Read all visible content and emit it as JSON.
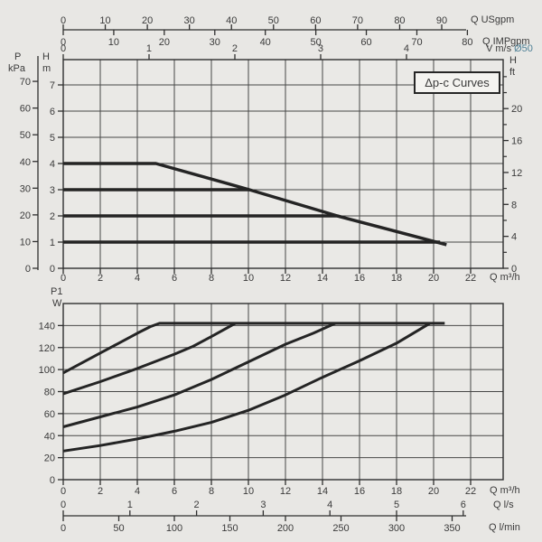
{
  "colors": {
    "background": "#e8e7e4",
    "plot_background": "#eae9e6",
    "grid": "#474747",
    "frame": "#2f2f2f",
    "curve": "#242424",
    "text": "#3a3a3a",
    "pipe_accent": "#4d7f95",
    "box_background": "#f4f3f0",
    "box_border": "#262626"
  },
  "mode_box_label": "Δp-c Curves",
  "chart_data": [
    {
      "type": "line",
      "title": "Δp-c Curves",
      "xlabel": "Q m³/h",
      "xlim": [
        0,
        23.8
      ],
      "x_ticks": [
        0,
        2,
        4,
        6,
        8,
        10,
        12,
        14,
        16,
        18,
        20,
        22
      ],
      "left_axis_kpa": {
        "line1": "P",
        "line2": "kPa",
        "ticks": [
          0,
          10,
          20,
          30,
          40,
          50,
          60,
          70
        ],
        "kpa_per_m": 9.81
      },
      "left_axis_m": {
        "line1": "H",
        "line2": "m",
        "ticks": [
          0,
          1,
          2,
          3,
          4,
          5,
          6,
          7
        ],
        "ylim": [
          0,
          8
        ]
      },
      "right_axis_ft": {
        "line1": "H",
        "line2": "ft",
        "major_ticks": [
          0,
          4,
          8,
          12,
          16,
          20
        ],
        "minor_ticks": [
          2,
          6,
          10,
          14,
          18,
          22,
          24
        ],
        "ft_per_m": 3.2808
      },
      "top_axis_usgpm": {
        "label": "Q USgpm",
        "ticks": [
          0,
          10,
          20,
          30,
          40,
          50,
          60,
          70,
          80,
          90
        ],
        "m3h_per_unit": 0.2271
      },
      "top_axis_impgpm": {
        "label": "Q IMPgpm",
        "ticks": [
          0,
          10,
          20,
          30,
          40,
          50,
          60,
          70,
          80
        ],
        "m3h_per_unit": 0.2728
      },
      "top_axis_velocity": {
        "label": "V m/s",
        "pipe": "Ø50",
        "ticks": [
          0,
          1,
          2,
          3,
          4
        ],
        "m3h_per_unit": 4.634
      },
      "series": [
        {
          "name": "constant-pressure-1m",
          "points": [
            [
              0,
              1
            ],
            [
              20.35,
              1
            ]
          ]
        },
        {
          "name": "constant-pressure-2m",
          "points": [
            [
              0,
              2
            ],
            [
              14.8,
              2
            ]
          ]
        },
        {
          "name": "constant-pressure-3m",
          "points": [
            [
              0,
              3
            ],
            [
              10.05,
              3
            ]
          ]
        },
        {
          "name": "constant-pressure-4m-max-curve",
          "points": [
            [
              0,
              4
            ],
            [
              5,
              4
            ],
            [
              10.05,
              3
            ],
            [
              14.8,
              2
            ],
            [
              20.7,
              0.9
            ]
          ]
        }
      ]
    },
    {
      "type": "line",
      "xlabel": "Q m³/h",
      "xlim": [
        0,
        23.8
      ],
      "x_ticks": [
        0,
        2,
        4,
        6,
        8,
        10,
        12,
        14,
        16,
        18,
        20,
        22
      ],
      "y_axis": {
        "line1": "P1",
        "line2": "W",
        "ticks": [
          0,
          20,
          40,
          60,
          80,
          100,
          120,
          140
        ],
        "ylim": [
          0,
          160
        ]
      },
      "bottom_axis_ls": {
        "label": "Q l/s",
        "ticks": [
          0,
          1,
          2,
          3,
          4,
          5,
          6
        ],
        "m3h_per_unit": 3.6
      },
      "bottom_axis_lmin": {
        "label": "Q l/min",
        "ticks": [
          0,
          50,
          100,
          150,
          200,
          250,
          300,
          350
        ],
        "m3h_per_unit": 0.06
      },
      "series": [
        {
          "name": "power-speed-1",
          "points": [
            [
              0,
              26
            ],
            [
              2,
              31
            ],
            [
              4,
              37
            ],
            [
              6,
              44
            ],
            [
              8,
              52
            ],
            [
              10,
              63
            ],
            [
              12,
              77
            ],
            [
              14,
              93
            ],
            [
              16,
              108
            ],
            [
              18,
              124
            ],
            [
              19.8,
              142
            ]
          ]
        },
        {
          "name": "power-speed-2",
          "points": [
            [
              0,
              48
            ],
            [
              2,
              57
            ],
            [
              4,
              66
            ],
            [
              6,
              77
            ],
            [
              8,
              91
            ],
            [
              10,
              107
            ],
            [
              12,
              123
            ],
            [
              13.5,
              133
            ],
            [
              14.7,
              142
            ]
          ]
        },
        {
          "name": "power-speed-3",
          "points": [
            [
              0,
              78
            ],
            [
              2,
              89
            ],
            [
              4,
              101
            ],
            [
              6,
              114
            ],
            [
              7,
              121
            ],
            [
              8,
              130
            ],
            [
              9.3,
              142
            ]
          ]
        },
        {
          "name": "power-speed-4-max",
          "points": [
            [
              0,
              97
            ],
            [
              1,
              106
            ],
            [
              2,
              115
            ],
            [
              3,
              124
            ],
            [
              4,
              133
            ],
            [
              4.7,
              139
            ],
            [
              5.2,
              142
            ],
            [
              20.6,
              142
            ]
          ]
        }
      ]
    }
  ]
}
